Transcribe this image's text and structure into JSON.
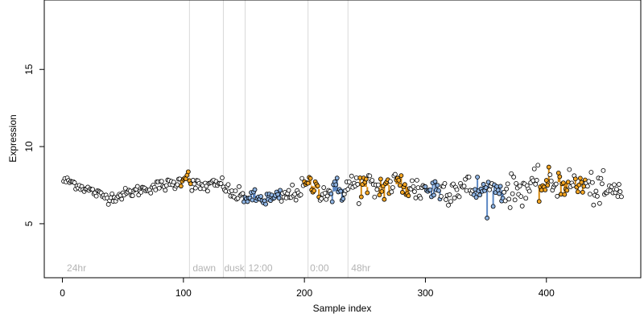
{
  "chart_data": {
    "type": "scatter",
    "title": "",
    "xlabel": "Sample index",
    "ylabel": "Expression",
    "xlim": [
      -15,
      478
    ],
    "ylim": [
      1.5,
      19.5
    ],
    "x_ticks": [
      0,
      100,
      200,
      300,
      400
    ],
    "y_ticks": [
      5,
      10,
      15
    ],
    "grid": false,
    "legend": "none",
    "colors": {
      "point_fill": "#ffffff",
      "point_stroke": "#000000",
      "highlight_fill": "#f5a623",
      "highlight_stroke": "#d68910",
      "low_fill": "#8fb4e3",
      "low_stroke": "#5b87c4",
      "vline": "#d9d9d9",
      "annotation": "#b4b4b4"
    },
    "vertical_lines": [
      105,
      133,
      151,
      203,
      236
    ],
    "annotations": [
      {
        "x": 3,
        "text": "24hr"
      },
      {
        "x": 107,
        "text": "dawn"
      },
      {
        "x": 133,
        "text": "dusk"
      },
      {
        "x": 153,
        "text": "12:00"
      },
      {
        "x": 204,
        "text": "0:00"
      },
      {
        "x": 238,
        "text": "48hr"
      }
    ],
    "series": [
      {
        "x_start": 1,
        "x_end": 462,
        "anchors": [
          [
            1,
            7.8
          ],
          [
            8,
            7.7
          ],
          [
            15,
            7.4
          ],
          [
            22,
            7.2
          ],
          [
            30,
            6.9
          ],
          [
            38,
            6.7
          ],
          [
            45,
            6.8
          ],
          [
            55,
            7.0
          ],
          [
            65,
            7.2
          ],
          [
            75,
            7.4
          ],
          [
            85,
            7.5
          ],
          [
            95,
            7.6
          ],
          [
            100,
            8.0
          ],
          [
            104,
            8.3
          ],
          [
            106,
            7.6
          ],
          [
            115,
            7.4
          ],
          [
            125,
            7.5
          ],
          [
            133,
            7.6
          ],
          [
            138,
            7.0
          ],
          [
            145,
            6.8
          ],
          [
            155,
            6.7
          ],
          [
            165,
            6.6
          ],
          [
            175,
            6.6
          ],
          [
            185,
            6.8
          ],
          [
            195,
            7.1
          ],
          [
            203,
            7.6
          ],
          [
            210,
            7.3
          ],
          [
            220,
            7.0
          ],
          [
            230,
            7.2
          ],
          [
            240,
            7.5
          ],
          [
            250,
            7.4
          ],
          [
            260,
            7.3
          ],
          [
            270,
            7.5
          ],
          [
            280,
            7.6
          ],
          [
            290,
            7.2
          ],
          [
            300,
            7.3
          ],
          [
            310,
            7.2
          ],
          [
            320,
            7.3
          ],
          [
            330,
            7.4
          ],
          [
            340,
            7.2
          ],
          [
            350,
            7.1
          ],
          [
            360,
            7.2
          ],
          [
            370,
            7.1
          ],
          [
            380,
            7.3
          ],
          [
            390,
            7.4
          ],
          [
            400,
            7.5
          ],
          [
            410,
            7.7
          ],
          [
            420,
            7.6
          ],
          [
            430,
            7.5
          ],
          [
            440,
            7.2
          ],
          [
            450,
            7.0
          ],
          [
            462,
            7.2
          ]
        ],
        "noise": [
          [
            0,
            0.15
          ],
          [
            100,
            0.2
          ],
          [
            200,
            0.3
          ],
          [
            240,
            0.5
          ],
          [
            462,
            0.5
          ]
        ],
        "highlight_ranges": [
          [
            98,
            106
          ],
          [
            200,
            212
          ],
          [
            246,
            252
          ],
          [
            262,
            270
          ],
          [
            276,
            286
          ],
          [
            394,
            402
          ],
          [
            410,
            418
          ],
          [
            424,
            432
          ]
        ],
        "low_ranges": [
          [
            150,
            180
          ],
          [
            222,
            232
          ],
          [
            300,
            312
          ],
          [
            340,
            352
          ],
          [
            356,
            364
          ]
        ]
      }
    ]
  }
}
